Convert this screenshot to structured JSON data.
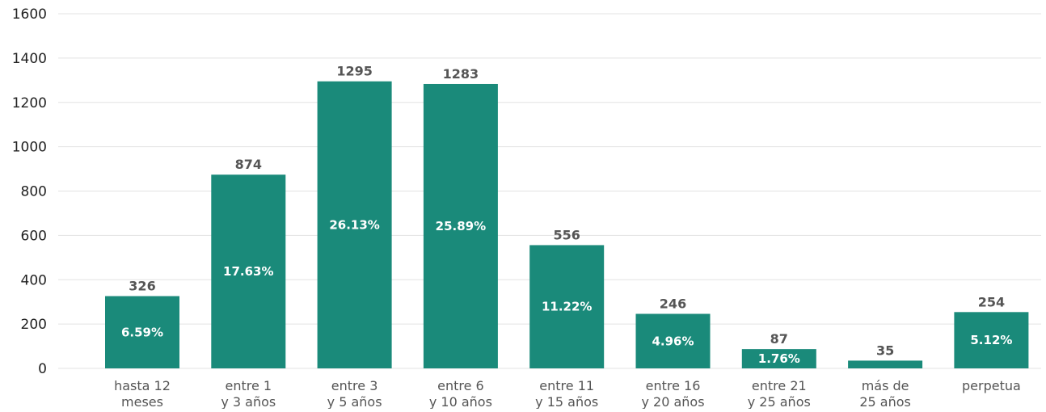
{
  "chart_data": {
    "type": "bar",
    "categories": [
      [
        "hasta 12",
        "meses"
      ],
      [
        "entre 1",
        "y 3 años"
      ],
      [
        "entre 3",
        "y 5 años"
      ],
      [
        "entre 6",
        "y 10 años"
      ],
      [
        "entre 11",
        "y 15 años"
      ],
      [
        "entre 16",
        "y 20 años"
      ],
      [
        "entre 21",
        "y 25 años"
      ],
      [
        "más de",
        "25 años"
      ],
      [
        "perpetua"
      ]
    ],
    "values": [
      326,
      874,
      1295,
      1283,
      556,
      246,
      87,
      35,
      254
    ],
    "value_labels": [
      "326",
      "874",
      "1295",
      "1283",
      "556",
      "246",
      "87",
      "35",
      "254"
    ],
    "percent_labels": [
      "6.59%",
      "17.63%",
      "26.13%",
      "25.89%",
      "11.22%",
      "4.96%",
      "1.76%",
      "",
      "5.12%"
    ],
    "ylim": [
      0,
      1600
    ],
    "yticks": [
      0,
      200,
      400,
      600,
      800,
      1000,
      1200,
      1400,
      1600
    ],
    "grid": true,
    "bar_color": "#1a8a7a",
    "title": "",
    "xlabel": "",
    "ylabel": ""
  }
}
